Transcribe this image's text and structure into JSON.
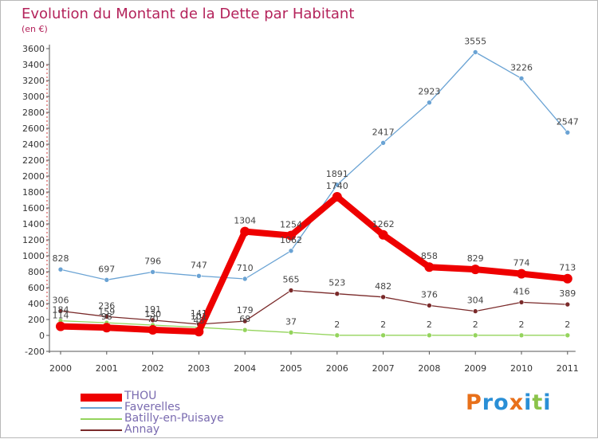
{
  "title": "Evolution du Montant de la Dette par Habitant",
  "unit_label": "(en €)",
  "logo": {
    "letters": [
      "P",
      "r",
      "o",
      "x",
      "i",
      "t",
      "i"
    ],
    "colors": [
      "#e8701a",
      "#2a8fd6",
      "#2a8fd6",
      "#e8701a",
      "#2a8fd6",
      "#8bc34a",
      "#2a8fd6"
    ]
  },
  "chart_data": {
    "type": "line",
    "x": [
      "2000",
      "2001",
      "2002",
      "2003",
      "2004",
      "2005",
      "2006",
      "2007",
      "2008",
      "2009",
      "2010",
      "2011"
    ],
    "ylim": [
      -200,
      3600
    ],
    "yticks": [
      "-200",
      "0",
      "200",
      "400",
      "600",
      "800",
      "1000",
      "1200",
      "1400",
      "1600",
      "1800",
      "2000",
      "2200",
      "2400",
      "2600",
      "2800",
      "3000",
      "3200",
      "3400",
      "3600"
    ],
    "grid": false,
    "legend_position": "bottom-left",
    "series": [
      {
        "name": "THOU",
        "color": "#ee0000",
        "width": "thick",
        "values": [
          114,
          98,
          70,
          48,
          1304,
          1254,
          1740,
          1262,
          858,
          829,
          774,
          713
        ],
        "labels": [
          "114",
          "98",
          "70",
          "48",
          "1304",
          "1254",
          "1740",
          "1262",
          "858",
          "829",
          "774",
          "713"
        ]
      },
      {
        "name": "Faverelles",
        "color": "#6aa3d4",
        "width": "thin",
        "values": [
          828,
          697,
          796,
          747,
          710,
          1062,
          1891,
          2417,
          2923,
          3555,
          3226,
          2547
        ],
        "labels": [
          "828",
          "697",
          "796",
          "747",
          "710",
          "1062",
          "1891",
          "2417",
          "2923",
          "3555",
          "3226",
          "2547"
        ]
      },
      {
        "name": "Batilly-en-Puisaye",
        "color": "#94d45c",
        "width": "thin",
        "values": [
          184,
          159,
          130,
          101,
          68,
          37,
          2,
          2,
          2,
          2,
          2,
          2
        ],
        "labels": [
          "184",
          "159",
          "130",
          "101",
          "68",
          "37",
          "2",
          "2",
          "2",
          "2",
          "2",
          "2"
        ]
      },
      {
        "name": "Annay",
        "color": "#7a2a2a",
        "width": "thin",
        "values": [
          306,
          236,
          191,
          141,
          179,
          565,
          523,
          482,
          376,
          304,
          416,
          389
        ],
        "labels": [
          "306",
          "236",
          "191",
          "141",
          "179",
          "565",
          "523",
          "482",
          "376",
          "304",
          "416",
          "389"
        ]
      }
    ]
  }
}
